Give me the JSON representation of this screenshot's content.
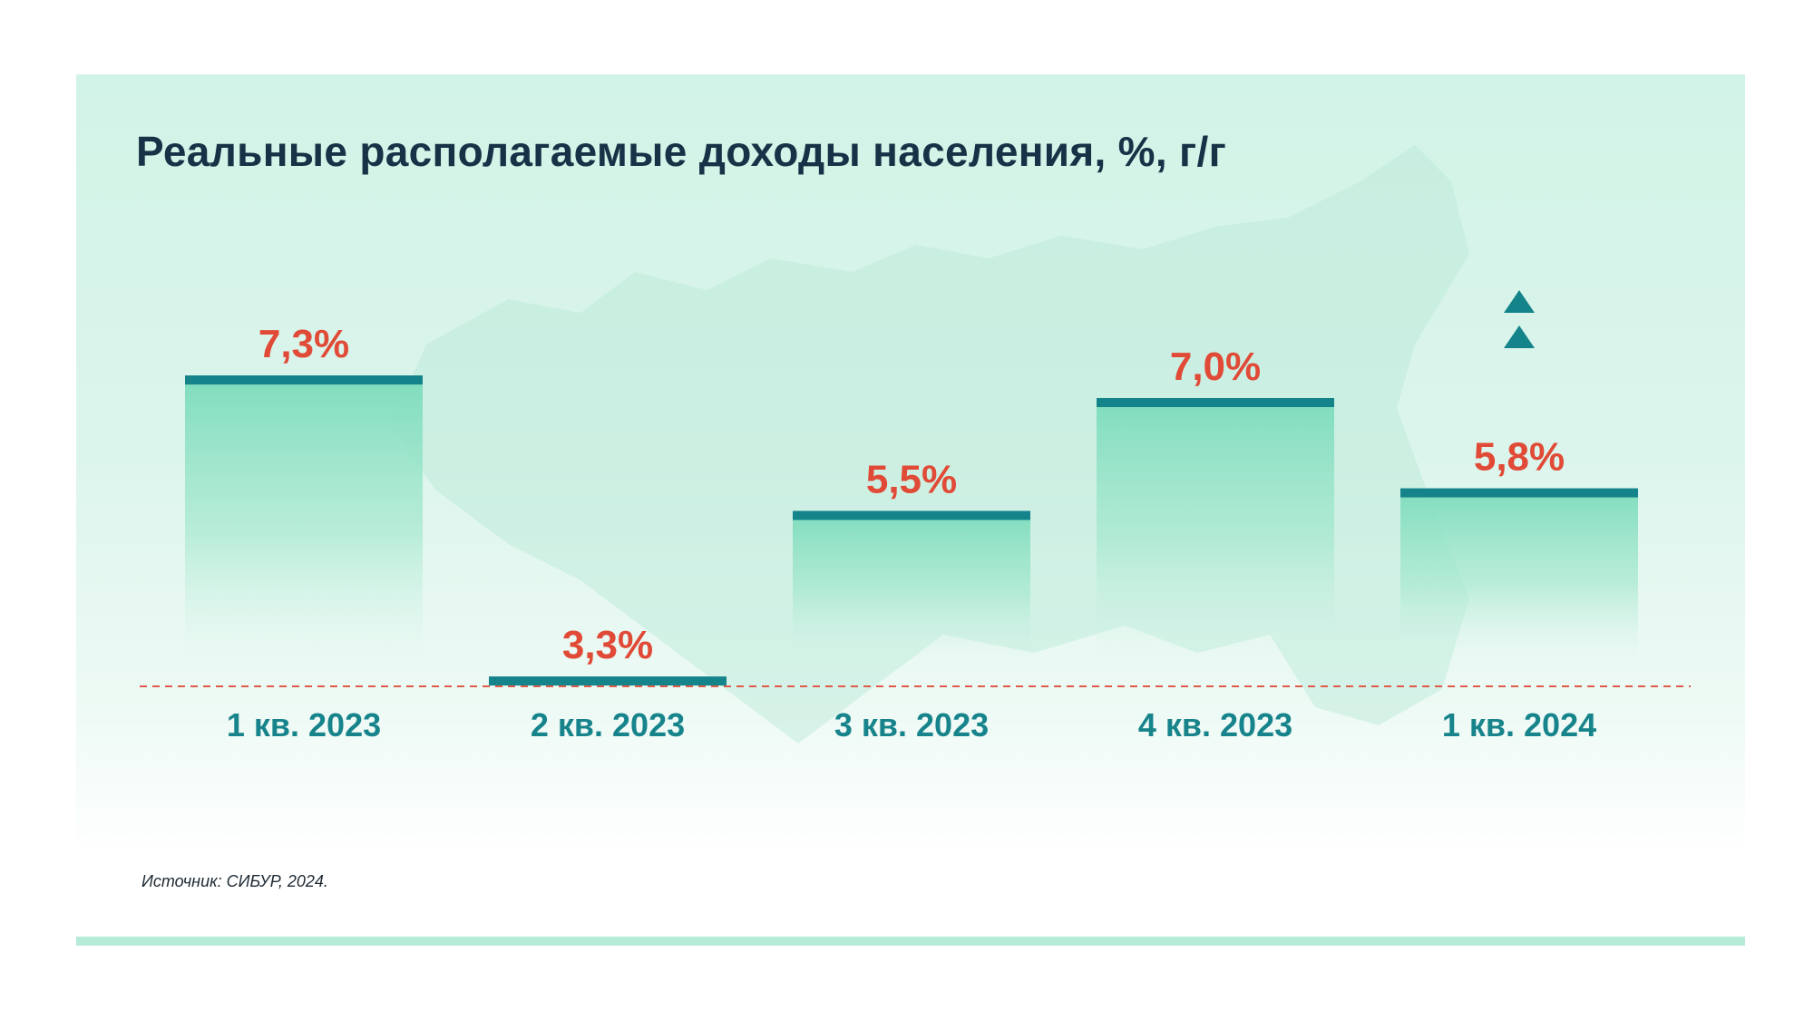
{
  "chart_data": {
    "type": "bar",
    "title": "Реальные располагаемые доходы населения, %, г/г",
    "xlabel": "",
    "ylabel": "",
    "categories": [
      "1 кв. 2023",
      "2 кв. 2023",
      "3 кв. 2023",
      "4 кв. 2023",
      "1 кв. 2024"
    ],
    "values": [
      7.3,
      3.3,
      5.5,
      7.0,
      5.8
    ],
    "value_labels": [
      "7,3%",
      "3,3%",
      "5,5%",
      "7,0%",
      "5,8%"
    ],
    "ylim": [
      0,
      10
    ],
    "grid": false,
    "legend": "none",
    "annotation": "up-arrows-icon",
    "source": "Источник: СИБУР, 2024."
  },
  "colors": {
    "title": "#173246",
    "value_label": "#e04a36",
    "category_label": "#17848c",
    "bar_cap": "#14838a",
    "bar_fill": "#7edcbd",
    "baseline": "#e05a4a",
    "arrow": "#14838a"
  }
}
